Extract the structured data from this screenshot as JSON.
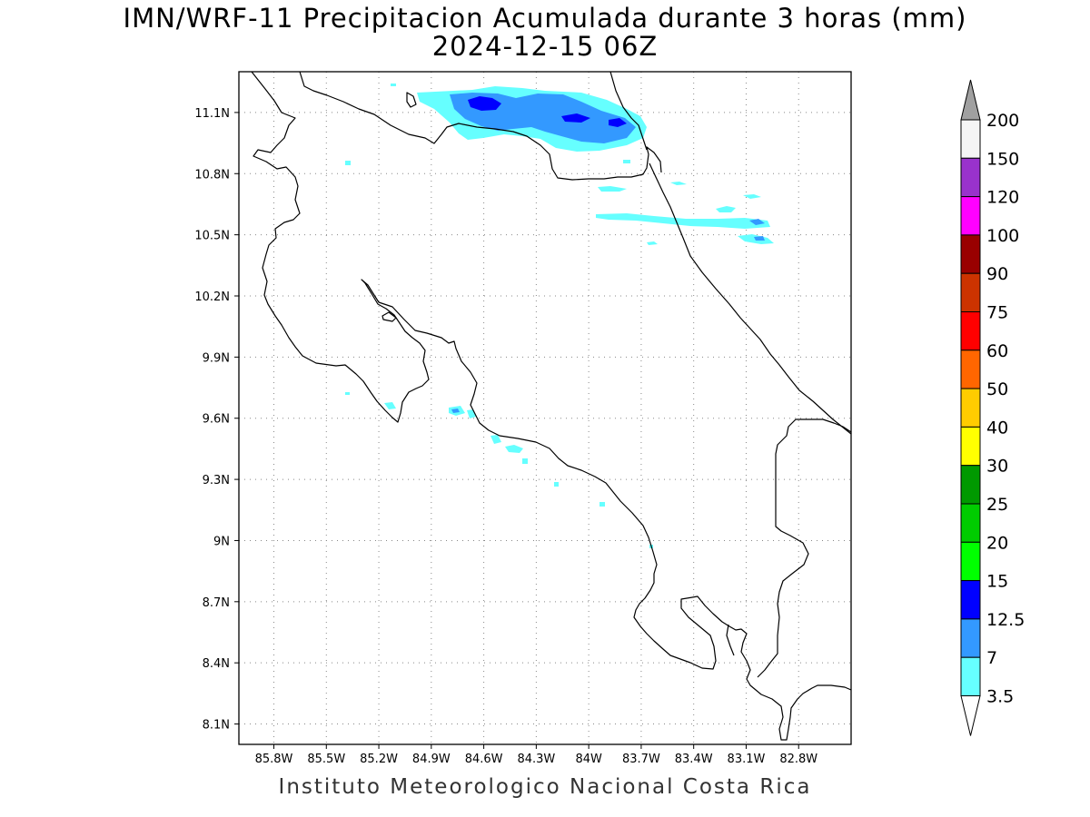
{
  "title": {
    "line1": "IMN/WRF-11 Precipitacion Acumulada durante 3 horas (mm)",
    "line2": "2024-12-15 06Z"
  },
  "credit": "Instituto Meteorologico Nacional Costa Rica",
  "map": {
    "lat_labels": [
      "11.1N",
      "10.8N",
      "10.5N",
      "10.2N",
      "9.9N",
      "9.6N",
      "9.3N",
      "9N",
      "8.7N",
      "8.4N",
      "8.1N"
    ],
    "lon_labels": [
      "85.8W",
      "85.5W",
      "85.2W",
      "84.9W",
      "84.6W",
      "84.3W",
      "84W",
      "83.7W",
      "83.4W",
      "83.1W",
      "82.8W"
    ],
    "lat_range": [
      8.0,
      11.3
    ],
    "lon_range": [
      -86.0,
      -82.5
    ],
    "gridlines": "dotted"
  },
  "colorbar": {
    "labels": [
      "200",
      "150",
      "120",
      "100",
      "90",
      "75",
      "60",
      "50",
      "40",
      "30",
      "25",
      "20",
      "15",
      "12.5",
      "7",
      "3.5"
    ],
    "colors": [
      "#a0a0a0",
      "#f5f5f5",
      "#9932cc",
      "#ff00ff",
      "#990000",
      "#cc3300",
      "#ff0000",
      "#ff6600",
      "#ffcc00",
      "#ffff00",
      "#009900",
      "#00cc00",
      "#00ff00",
      "#0000ff",
      "#3399ff",
      "#66ffff",
      "#ffffff"
    ]
  }
}
